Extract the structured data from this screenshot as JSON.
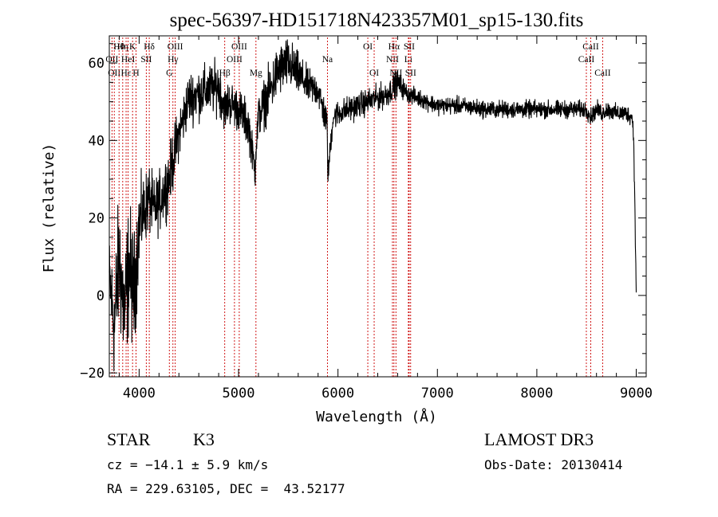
{
  "chart_data": {
    "type": "line",
    "title": "spec-56397-HD151718N423357M01_sp15-130.fits",
    "xlabel": "Wavelength (Å)",
    "ylabel": "Flux (relative)",
    "xlim": [
      3700,
      9100
    ],
    "ylim": [
      -21,
      67
    ],
    "xticks": [
      4000,
      5000,
      6000,
      7000,
      8000,
      9000
    ],
    "yticks": [
      -20,
      0,
      20,
      40,
      60
    ],
    "series": [
      {
        "anchors_x": [
          3700,
          3750,
          3800,
          3850,
          3900,
          3950,
          4000,
          4050,
          4100,
          4150,
          4200,
          4250,
          4300,
          4350,
          4400,
          4450,
          4500,
          4600,
          4700,
          4800,
          4861,
          4900,
          5000,
          5100,
          5167,
          5175,
          5200,
          5300,
          5400,
          5500,
          5600,
          5700,
          5800,
          5890,
          5900,
          5950,
          6000,
          6100,
          6200,
          6300,
          6400,
          6500,
          6563,
          6600,
          6700,
          6800,
          7000,
          7200,
          7500,
          7800,
          8000,
          8200,
          8400,
          8500,
          8542,
          8600,
          8662,
          8700,
          8800,
          8900,
          8960,
          8975,
          9000
        ],
        "anchors_y": [
          5,
          -8,
          10,
          -5,
          8,
          0,
          18,
          22,
          25,
          22,
          24,
          27,
          30,
          36,
          42,
          46,
          51,
          52,
          53,
          54,
          48,
          50,
          48,
          44,
          32,
          38,
          46,
          52,
          58,
          60,
          57,
          54,
          53,
          44,
          31,
          46,
          47,
          48,
          49,
          50,
          51,
          52,
          54,
          55,
          52,
          51,
          49,
          49,
          48,
          48,
          48,
          48,
          48,
          48,
          46,
          48,
          47,
          48,
          47,
          47,
          46,
          40,
          0
        ],
        "noise": [
          9,
          14,
          16,
          15,
          15,
          14,
          10,
          8,
          8,
          7,
          7,
          7,
          7,
          7,
          6,
          6,
          6,
          6,
          6,
          6,
          5,
          5,
          5,
          5,
          4,
          4,
          5,
          6,
          6,
          6,
          5,
          4,
          4,
          4,
          3,
          3,
          3,
          3,
          3,
          3,
          3,
          3,
          3,
          3,
          2,
          2,
          2,
          2,
          2,
          2,
          2,
          2,
          2,
          2,
          2,
          2,
          2,
          2,
          2,
          2,
          2,
          2,
          2
        ]
      }
    ],
    "line_markers": [
      {
        "x": 3727,
        "row": 2,
        "label": "OII"
      },
      {
        "x": 3750,
        "row": 3,
        "label": "OII"
      },
      {
        "x": 3798,
        "row": 1,
        "label": "Hθ"
      },
      {
        "x": 3835,
        "row": 1,
        "label": "Hη"
      },
      {
        "x": 3869,
        "row": 3,
        "label": "Hε"
      },
      {
        "x": 3889,
        "row": 2,
        "label": "HeI"
      },
      {
        "x": 3934,
        "row": 1,
        "label": "K"
      },
      {
        "x": 3969,
        "row": 3,
        "label": "H"
      },
      {
        "x": 4072,
        "row": 2,
        "label": "SII"
      },
      {
        "x": 4102,
        "row": 1,
        "label": "Hδ"
      },
      {
        "x": 4304,
        "row": 3,
        "label": "G"
      },
      {
        "x": 4340,
        "row": 2,
        "label": "Hγ"
      },
      {
        "x": 4363,
        "row": 1,
        "label": "OIII"
      },
      {
        "x": 4861,
        "row": 3,
        "label": "Hβ"
      },
      {
        "x": 4959,
        "row": 2,
        "label": "OIII"
      },
      {
        "x": 5007,
        "row": 1,
        "label": "OIII"
      },
      {
        "x": 5175,
        "row": 3,
        "label": "Mg"
      },
      {
        "x": 5894,
        "row": 2,
        "label": "Na"
      },
      {
        "x": 6300,
        "row": 1,
        "label": "OI"
      },
      {
        "x": 6364,
        "row": 3,
        "label": "OI"
      },
      {
        "x": 6548,
        "row": 2,
        "label": "NII"
      },
      {
        "x": 6563,
        "row": 1,
        "label": "Hα"
      },
      {
        "x": 6583,
        "row": 3,
        "label": "NII"
      },
      {
        "x": 6708,
        "row": 2,
        "label": "Li"
      },
      {
        "x": 6716,
        "row": 1,
        "label": "SII"
      },
      {
        "x": 6731,
        "row": 3,
        "label": "SII"
      },
      {
        "x": 8498,
        "row": 2,
        "label": "CaII"
      },
      {
        "x": 8542,
        "row": 1,
        "label": "CaII"
      },
      {
        "x": 8662,
        "row": 3,
        "label": "CaII"
      }
    ]
  },
  "info": {
    "class_label": "STAR",
    "subclass": "K3",
    "survey": "LAMOST DR3",
    "cz": "cz = −14.1 ± 5.9 km/s",
    "obs_date": "Obs-Date: 20130414",
    "coords": "RA = 229.63105, DEC =  43.52177"
  }
}
